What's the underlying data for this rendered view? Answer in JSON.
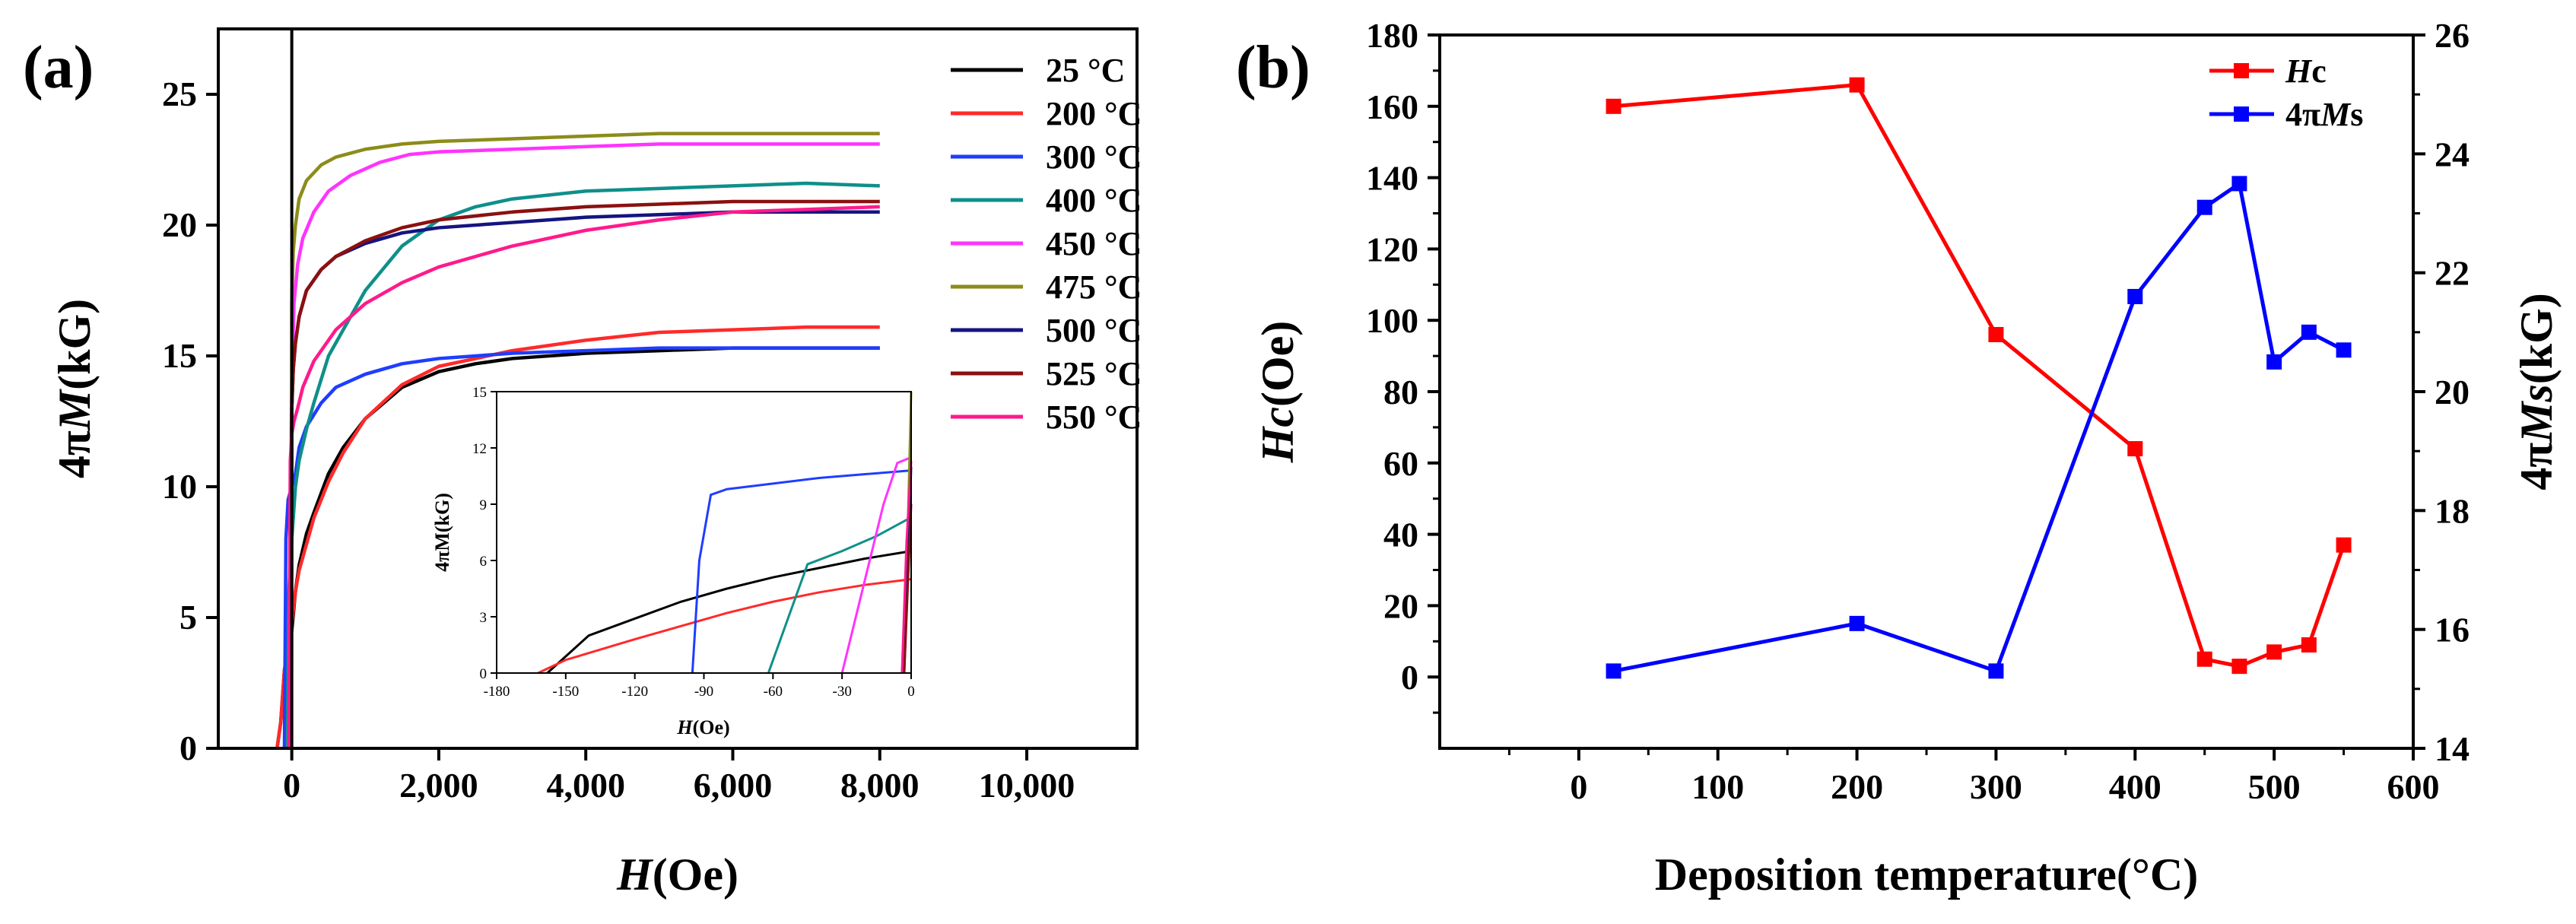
{
  "colors": {
    "25": "#000000",
    "200": "#ff2a2a",
    "300": "#1f3dff",
    "400": "#0f8f8a",
    "450": "#ff33ff",
    "475": "#8c8c1a",
    "500": "#141480",
    "525": "#8b1010",
    "550": "#ff1a8c",
    "hc": "#ff0000",
    "ms": "#0000ff"
  },
  "chart_data": [
    {
      "id": "a",
      "panel_label": "(a)",
      "type": "line",
      "xlabel_italic": "H",
      "xlabel_rest": "(Oe)",
      "ylabel_prefix": "4π",
      "ylabel_italic": "M",
      "ylabel_rest": "(kG)",
      "xlim": [
        -1000,
        11500
      ],
      "ylim": [
        0,
        27.5
      ],
      "xticks": [
        0,
        2000,
        4000,
        6000,
        8000,
        10000
      ],
      "xtick_labels": [
        "0",
        "2,000",
        "4,000",
        "6,000",
        "8,000",
        "10,000"
      ],
      "yticks": [
        0,
        5,
        10,
        15,
        20,
        25
      ],
      "ytick_labels": [
        "0",
        "5",
        "10",
        "15",
        "20",
        "25"
      ],
      "series": [
        {
          "name": "25 °C",
          "label": "25 °C",
          "color_key": "25",
          "x": [
            -200,
            -150,
            -100,
            0,
            50,
            100,
            200,
            300,
            500,
            700,
            1000,
            1500,
            2000,
            2500,
            3000,
            4000,
            5000,
            6000,
            7000,
            8000
          ],
          "y": [
            0,
            1,
            3,
            4.5,
            6,
            7,
            8.2,
            9,
            10.5,
            11.5,
            12.6,
            13.8,
            14.4,
            14.7,
            14.9,
            15.1,
            15.2,
            15.3,
            15.3,
            15.3
          ]
        },
        {
          "name": "200 °C",
          "label": "200 °C",
          "color_key": "200",
          "x": [
            -200,
            -150,
            -100,
            0,
            50,
            100,
            200,
            300,
            500,
            700,
            1000,
            1500,
            2000,
            3000,
            4000,
            5000,
            6000,
            7000,
            8000
          ],
          "y": [
            0,
            1,
            3,
            4.8,
            6,
            6.8,
            7.8,
            8.8,
            10.2,
            11.3,
            12.6,
            13.9,
            14.6,
            15.2,
            15.6,
            15.9,
            16,
            16.1,
            16.1
          ]
        },
        {
          "name": "300 °C",
          "label": "300 °C",
          "color_key": "300",
          "x": [
            -100,
            -80,
            -50,
            0,
            50,
            100,
            200,
            400,
            600,
            1000,
            1500,
            2000,
            3000,
            4000,
            5000,
            6000,
            7000,
            8000
          ],
          "y": [
            0,
            8,
            9.5,
            10,
            10.5,
            11.5,
            12.3,
            13.2,
            13.8,
            14.3,
            14.7,
            14.9,
            15.1,
            15.2,
            15.3,
            15.3,
            15.3,
            15.3
          ]
        },
        {
          "name": "400 °C",
          "label": "400 °C",
          "color_key": "400",
          "x": [
            -60,
            -40,
            0,
            50,
            100,
            200,
            300,
            500,
            700,
            1000,
            1500,
            2000,
            2500,
            3000,
            4000,
            5000,
            6000,
            7000,
            8000
          ],
          "y": [
            0,
            6,
            8,
            10,
            11,
            12.2,
            13.2,
            15,
            16,
            17.5,
            19.2,
            20.2,
            20.7,
            21,
            21.3,
            21.4,
            21.5,
            21.6,
            21.5
          ]
        },
        {
          "name": "450 °C",
          "label": "450 °C",
          "color_key": "450",
          "x": [
            -30,
            -10,
            0,
            30,
            80,
            150,
            300,
            500,
            800,
            1200,
            1600,
            2000,
            3000,
            4000,
            5000,
            6000,
            7000,
            8000
          ],
          "y": [
            0,
            11,
            14,
            17,
            18.5,
            19.5,
            20.5,
            21.3,
            21.9,
            22.4,
            22.7,
            22.8,
            22.9,
            23,
            23.1,
            23.1,
            23.1,
            23.1
          ]
        },
        {
          "name": "475 °C",
          "label": "475 °C",
          "color_key": "475",
          "x": [
            -10,
            -2,
            0,
            20,
            50,
            100,
            200,
            400,
            600,
            1000,
            1500,
            2000,
            3000,
            4000,
            5000,
            6000,
            7000,
            8000
          ],
          "y": [
            0,
            12,
            17,
            19,
            20,
            21,
            21.7,
            22.3,
            22.6,
            22.9,
            23.1,
            23.2,
            23.3,
            23.4,
            23.5,
            23.5,
            23.5,
            23.5
          ]
        },
        {
          "name": "500 °C",
          "label": "500 °C",
          "color_key": "500",
          "x": [
            -5,
            0,
            20,
            50,
            100,
            200,
            400,
            600,
            1000,
            1500,
            2000,
            3000,
            4000,
            5000,
            6000,
            7000,
            8000
          ],
          "y": [
            0,
            13,
            14.5,
            15.5,
            16.5,
            17.5,
            18.3,
            18.8,
            19.3,
            19.7,
            19.9,
            20.1,
            20.3,
            20.4,
            20.5,
            20.5,
            20.5
          ]
        },
        {
          "name": "525 °C",
          "label": "525 °C",
          "color_key": "525",
          "x": [
            -5,
            0,
            20,
            50,
            100,
            200,
            400,
            600,
            1000,
            1500,
            2000,
            3000,
            4000,
            5000,
            6000,
            7000,
            8000
          ],
          "y": [
            0,
            13,
            14.5,
            15.5,
            16.5,
            17.5,
            18.3,
            18.8,
            19.4,
            19.9,
            20.2,
            20.5,
            20.7,
            20.8,
            20.9,
            20.9,
            20.9
          ]
        },
        {
          "name": "550 °C",
          "label": "550 °C",
          "color_key": "550",
          "x": [
            -40,
            -20,
            0,
            30,
            80,
            150,
            300,
            600,
            1000,
            1500,
            2000,
            3000,
            4000,
            5000,
            6000,
            7000,
            8000
          ],
          "y": [
            0,
            11,
            12,
            12.5,
            13,
            13.8,
            14.8,
            16,
            17,
            17.8,
            18.4,
            19.2,
            19.8,
            20.2,
            20.5,
            20.6,
            20.7
          ]
        }
      ]
    },
    {
      "id": "a-inset",
      "type": "line",
      "xlabel_italic": "H",
      "xlabel_rest": "(Oe)",
      "ylabel": "4πM(kG)",
      "xlim": [
        -180,
        0
      ],
      "ylim": [
        0,
        15
      ],
      "xticks": [
        -180,
        -150,
        -120,
        -90,
        -60,
        -30,
        0
      ],
      "xtick_labels": [
        "-180",
        "-150",
        "-120",
        "-90",
        "-60",
        "-30",
        "0"
      ],
      "yticks": [
        0,
        3,
        6,
        9,
        12,
        15
      ],
      "ytick_labels": [
        "0",
        "3",
        "6",
        "9",
        "12",
        "15"
      ],
      "series": [
        {
          "name": "25 °C",
          "color_key": "25",
          "x": [
            -158,
            -140,
            -120,
            -100,
            -80,
            -60,
            -40,
            -20,
            0
          ],
          "y": [
            0,
            2,
            2.9,
            3.8,
            4.5,
            5.1,
            5.6,
            6.1,
            6.5
          ]
        },
        {
          "name": "200 °C",
          "color_key": "200",
          "x": [
            -162,
            -150,
            -120,
            -100,
            -80,
            -60,
            -40,
            -20,
            0
          ],
          "y": [
            0,
            0.7,
            1.8,
            2.5,
            3.2,
            3.8,
            4.3,
            4.7,
            5
          ]
        },
        {
          "name": "300 °C",
          "color_key": "300",
          "x": [
            -95,
            -92,
            -87,
            -80,
            -60,
            -40,
            -20,
            0
          ],
          "y": [
            0,
            6,
            9.5,
            9.8,
            10.1,
            10.4,
            10.6,
            10.8
          ]
        },
        {
          "name": "400 °C",
          "color_key": "400",
          "x": [
            -62,
            -45,
            -30,
            -15,
            0
          ],
          "y": [
            0,
            5.8,
            6.5,
            7.3,
            8.3
          ]
        },
        {
          "name": "450 °C",
          "color_key": "450",
          "x": [
            -30,
            -20,
            -12,
            -6,
            0
          ],
          "y": [
            0,
            5,
            9,
            11.2,
            11.5
          ]
        },
        {
          "name": "475 °C",
          "color_key": "475",
          "x": [
            -3,
            -1,
            0
          ],
          "y": [
            0,
            10,
            15
          ]
        },
        {
          "name": "500 °C",
          "color_key": "500",
          "x": [
            -3,
            -1,
            0
          ],
          "y": [
            0,
            7,
            11
          ]
        },
        {
          "name": "525 °C",
          "color_key": "525",
          "x": [
            -3,
            -1,
            0
          ],
          "y": [
            0,
            6,
            9
          ]
        },
        {
          "name": "550 °C",
          "color_key": "550",
          "x": [
            -4,
            -2,
            0
          ],
          "y": [
            0,
            7,
            11.3
          ]
        }
      ]
    },
    {
      "id": "b",
      "panel_label": "(b)",
      "type": "line",
      "xlabel": "Deposition temperature(°C)",
      "ylabel_italic": "Hc",
      "ylabel_rest": "(Oe)",
      "y2label_prefix": "4π",
      "y2label_italic": "Ms",
      "y2label_rest": "(kG)",
      "xlim": [
        -100,
        600
      ],
      "ylim": [
        -20,
        180
      ],
      "y2lim": [
        14,
        26
      ],
      "xticks": [
        0,
        100,
        200,
        300,
        400,
        500,
        600
      ],
      "xtick_labels": [
        "0",
        "100",
        "200",
        "300",
        "400",
        "500",
        "600"
      ],
      "yticks": [
        0,
        20,
        40,
        60,
        80,
        100,
        120,
        140,
        160,
        180
      ],
      "ytick_labels": [
        "0",
        "20",
        "40",
        "60",
        "80",
        "100",
        "120",
        "140",
        "160",
        "180"
      ],
      "y2ticks": [
        14,
        16,
        18,
        20,
        22,
        24,
        26
      ],
      "y2tick_labels": [
        "14",
        "16",
        "18",
        "20",
        "22",
        "24",
        "26"
      ],
      "series": [
        {
          "name": "Hc",
          "legend_italic": "H",
          "legend_rest": "c",
          "axis": "left",
          "color_key": "hc",
          "x": [
            25,
            200,
            300,
            400,
            450,
            475,
            500,
            525,
            550
          ],
          "y": [
            160,
            166,
            96,
            64,
            5,
            3,
            7,
            9,
            37
          ]
        },
        {
          "name": "4πMs",
          "legend_prefix": "4π",
          "legend_italic": "M",
          "legend_rest": "s",
          "axis": "right",
          "color_key": "ms",
          "x": [
            25,
            200,
            300,
            400,
            450,
            475,
            500,
            525,
            550
          ],
          "y": [
            15.3,
            16.1,
            15.3,
            21.6,
            23.1,
            23.5,
            20.5,
            21,
            20.7
          ]
        }
      ]
    }
  ]
}
